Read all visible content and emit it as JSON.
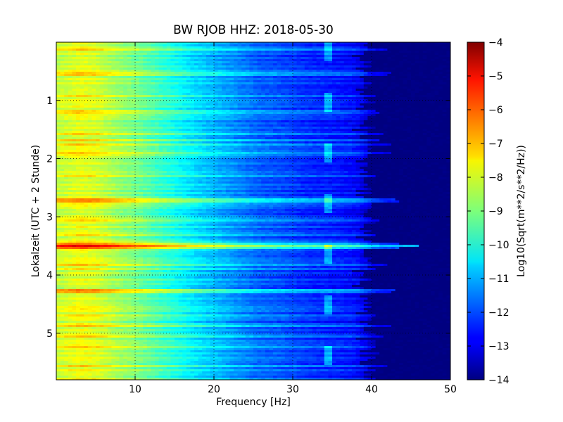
{
  "chart_data": {
    "type": "heatmap",
    "title": "BW RJOB HHZ: 2018-05-30",
    "xlabel": "Frequency [Hz]",
    "ylabel": "Lokalzeit (UTC + 2 Stunde)",
    "xlim": [
      0,
      50
    ],
    "ylim": [
      5.8,
      0
    ],
    "x_ticks": [
      10,
      20,
      30,
      40,
      50
    ],
    "x_tick_labels": [
      "10",
      "20",
      "30",
      "40",
      "50"
    ],
    "y_ticks": [
      1,
      2,
      3,
      4,
      5
    ],
    "y_tick_labels": [
      "1",
      "2",
      "3",
      "4",
      "5"
    ],
    "grid": true,
    "colormap": "jet",
    "colorbar": {
      "label": "Log10(Sqrt(m**2/s**2/Hz))",
      "range": [
        -14,
        -4
      ],
      "ticks": [
        -4,
        -5,
        -6,
        -7,
        -8,
        -9,
        -10,
        -11,
        -12,
        -13,
        -14
      ],
      "tick_labels": [
        "−4",
        "−5",
        "−6",
        "−7",
        "−8",
        "−9",
        "−10",
        "−11",
        "−12",
        "−13",
        "−14"
      ]
    },
    "spectral_profile": {
      "frequency_hz": [
        0.5,
        3,
        5,
        8,
        10,
        12,
        14,
        16,
        18,
        20,
        22,
        24,
        26,
        28,
        30,
        32,
        34,
        36,
        38,
        39,
        40,
        42,
        45,
        50
      ],
      "log10_amplitude": [
        -8.4,
        -8.0,
        -8.2,
        -8.8,
        -9.1,
        -9.5,
        -9.9,
        -10.3,
        -10.7,
        -11.0,
        -11.3,
        -11.6,
        -11.9,
        -12.0,
        -12.2,
        -12.4,
        -12.5,
        -12.6,
        -12.8,
        -13.1,
        -13.6,
        -14.0,
        -14.0,
        -14.0
      ]
    },
    "strong_bands_hours": [
      2.73,
      3.47,
      3.52,
      4.28
    ],
    "narrowband_line_hz": 34.5
  }
}
